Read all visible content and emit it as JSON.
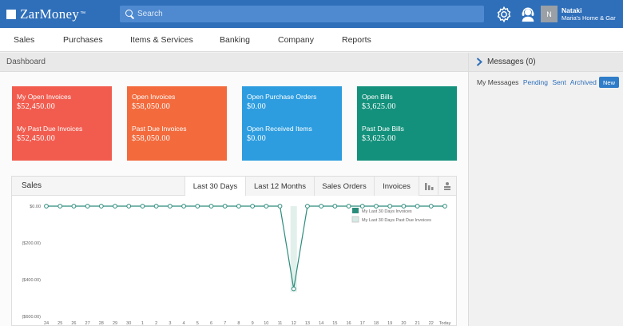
{
  "app": {
    "logo": "ZarMoney",
    "logo_tm": "™"
  },
  "search": {
    "placeholder": "Search"
  },
  "user": {
    "initial": "N",
    "name": "Nataki",
    "company": "Maria's Home & Gar"
  },
  "nav": {
    "items": [
      "Sales",
      "Purchases",
      "Items & Services",
      "Banking",
      "Company",
      "Reports"
    ]
  },
  "dashboard": {
    "title": "Dashboard"
  },
  "tiles": [
    {
      "label1": "My Open Invoices",
      "value1": "$52,450.00",
      "label2": "My Past Due Invoices",
      "value2": "$52,450.00",
      "color": "#f25c4f"
    },
    {
      "label1": "Open Invoices",
      "value1": "$58,050.00",
      "label2": "Past Due Invoices",
      "value2": "$58,050.00",
      "color": "#f36a3c"
    },
    {
      "label1": "Open Purchase Orders",
      "value1": "$0.00",
      "label2": "Open Received Items",
      "value2": "$0.00",
      "color": "#2d9de0"
    },
    {
      "label1": "Open Bills",
      "value1": "$3,625.00",
      "label2": "Past Due Bills",
      "value2": "$3,625.00",
      "color": "#13917c"
    }
  ],
  "sales_panel": {
    "title": "Sales",
    "tabs": [
      "Last 30 Days",
      "Last 12 Months",
      "Sales Orders",
      "Invoices"
    ],
    "active_tab": "Last 30 Days",
    "icons": [
      "bar-chart-icon",
      "table-icon"
    ]
  },
  "chart_data": {
    "type": "line",
    "x": [
      "24",
      "25",
      "26",
      "27",
      "28",
      "29",
      "30",
      "1",
      "2",
      "3",
      "4",
      "5",
      "6",
      "7",
      "8",
      "9",
      "10",
      "11",
      "12",
      "13",
      "14",
      "15",
      "16",
      "17",
      "18",
      "19",
      "20",
      "21",
      "22",
      "Today"
    ],
    "yticks": [
      "$0.00",
      "($200.00)",
      "($400.00)",
      "($600.00)"
    ],
    "ylim": [
      -600,
      0
    ],
    "series": [
      {
        "name": "My Last 30 Days Invoices",
        "color": "#2c8c7c",
        "values": [
          0,
          0,
          0,
          0,
          0,
          0,
          0,
          0,
          0,
          0,
          0,
          0,
          0,
          0,
          0,
          0,
          0,
          0,
          -450,
          0,
          0,
          0,
          0,
          0,
          0,
          0,
          0,
          0,
          0,
          0
        ]
      },
      {
        "name": "My Last 30 Days Past Due Invoices",
        "color": "#d6e9e4",
        "values": [
          0,
          0,
          0,
          0,
          0,
          0,
          0,
          0,
          0,
          0,
          0,
          0,
          0,
          0,
          0,
          0,
          0,
          0,
          0,
          0,
          0,
          0,
          0,
          0,
          0,
          0,
          0,
          0,
          0,
          0
        ]
      }
    ],
    "legend": "top-right"
  },
  "messages": {
    "title": "Messages (0)",
    "tabs": [
      "My Messages",
      "Pending",
      "Sent",
      "Archived"
    ],
    "new_label": "New"
  }
}
